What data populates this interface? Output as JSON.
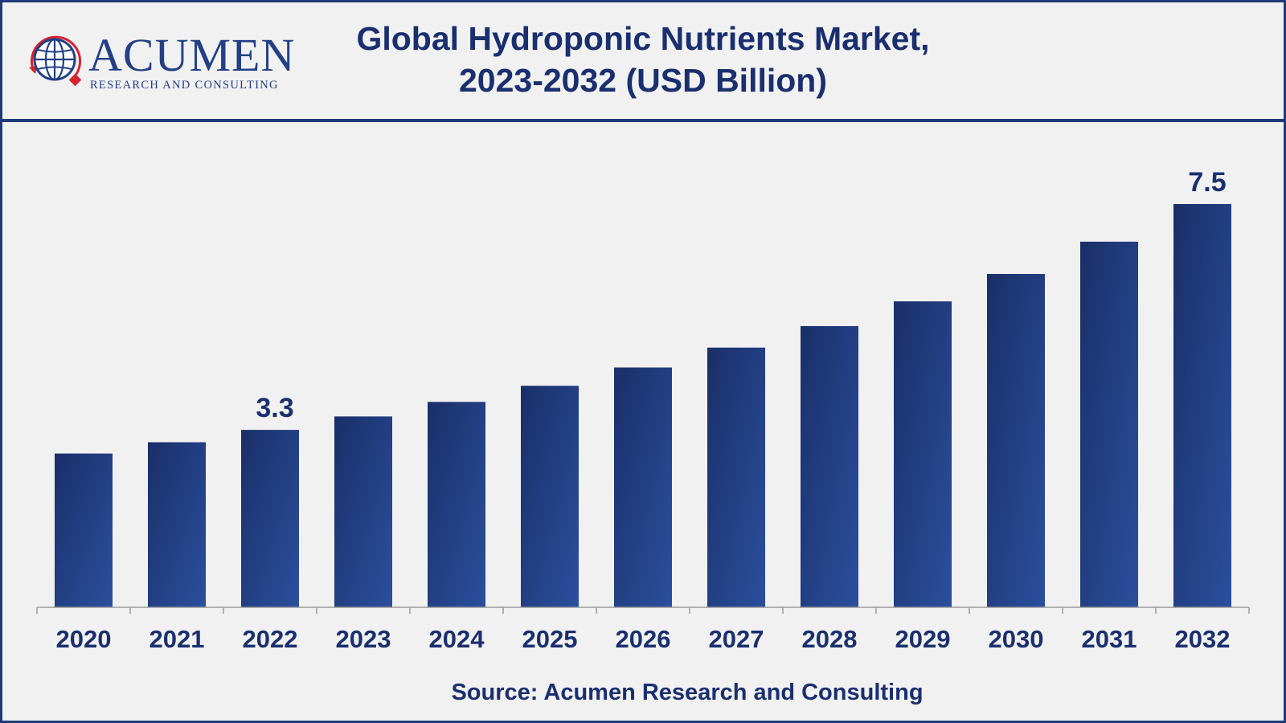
{
  "title_line1": "Global Hydroponic Nutrients Market,",
  "title_line2": "2023-2032 (USD Billion)",
  "logo": {
    "brand": "ACUMEN",
    "tagline": "RESEARCH AND CONSULTING"
  },
  "source": "Source: Acumen Research and Consulting",
  "colors": {
    "bar_dark": "#1a2f68",
    "bar_light": "#2b4f9e",
    "text": "#1a2f6e",
    "border": "#1f3a78",
    "logo_red": "#d6232f"
  },
  "chart_data": {
    "type": "bar",
    "categories": [
      "2020",
      "2021",
      "2022",
      "2023",
      "2024",
      "2025",
      "2026",
      "2027",
      "2028",
      "2029",
      "2030",
      "2031",
      "2032"
    ],
    "values": [
      2.86,
      3.07,
      3.3,
      3.55,
      3.82,
      4.12,
      4.46,
      4.83,
      5.23,
      5.69,
      6.2,
      6.8,
      7.5
    ],
    "data_labels": [
      {
        "category": "2022",
        "text": "3.3"
      },
      {
        "category": "2032",
        "text": "7.5"
      }
    ],
    "xlabel": "",
    "ylabel": "",
    "ylim": [
      0,
      7.5
    ],
    "grid": false,
    "legend": "none"
  }
}
